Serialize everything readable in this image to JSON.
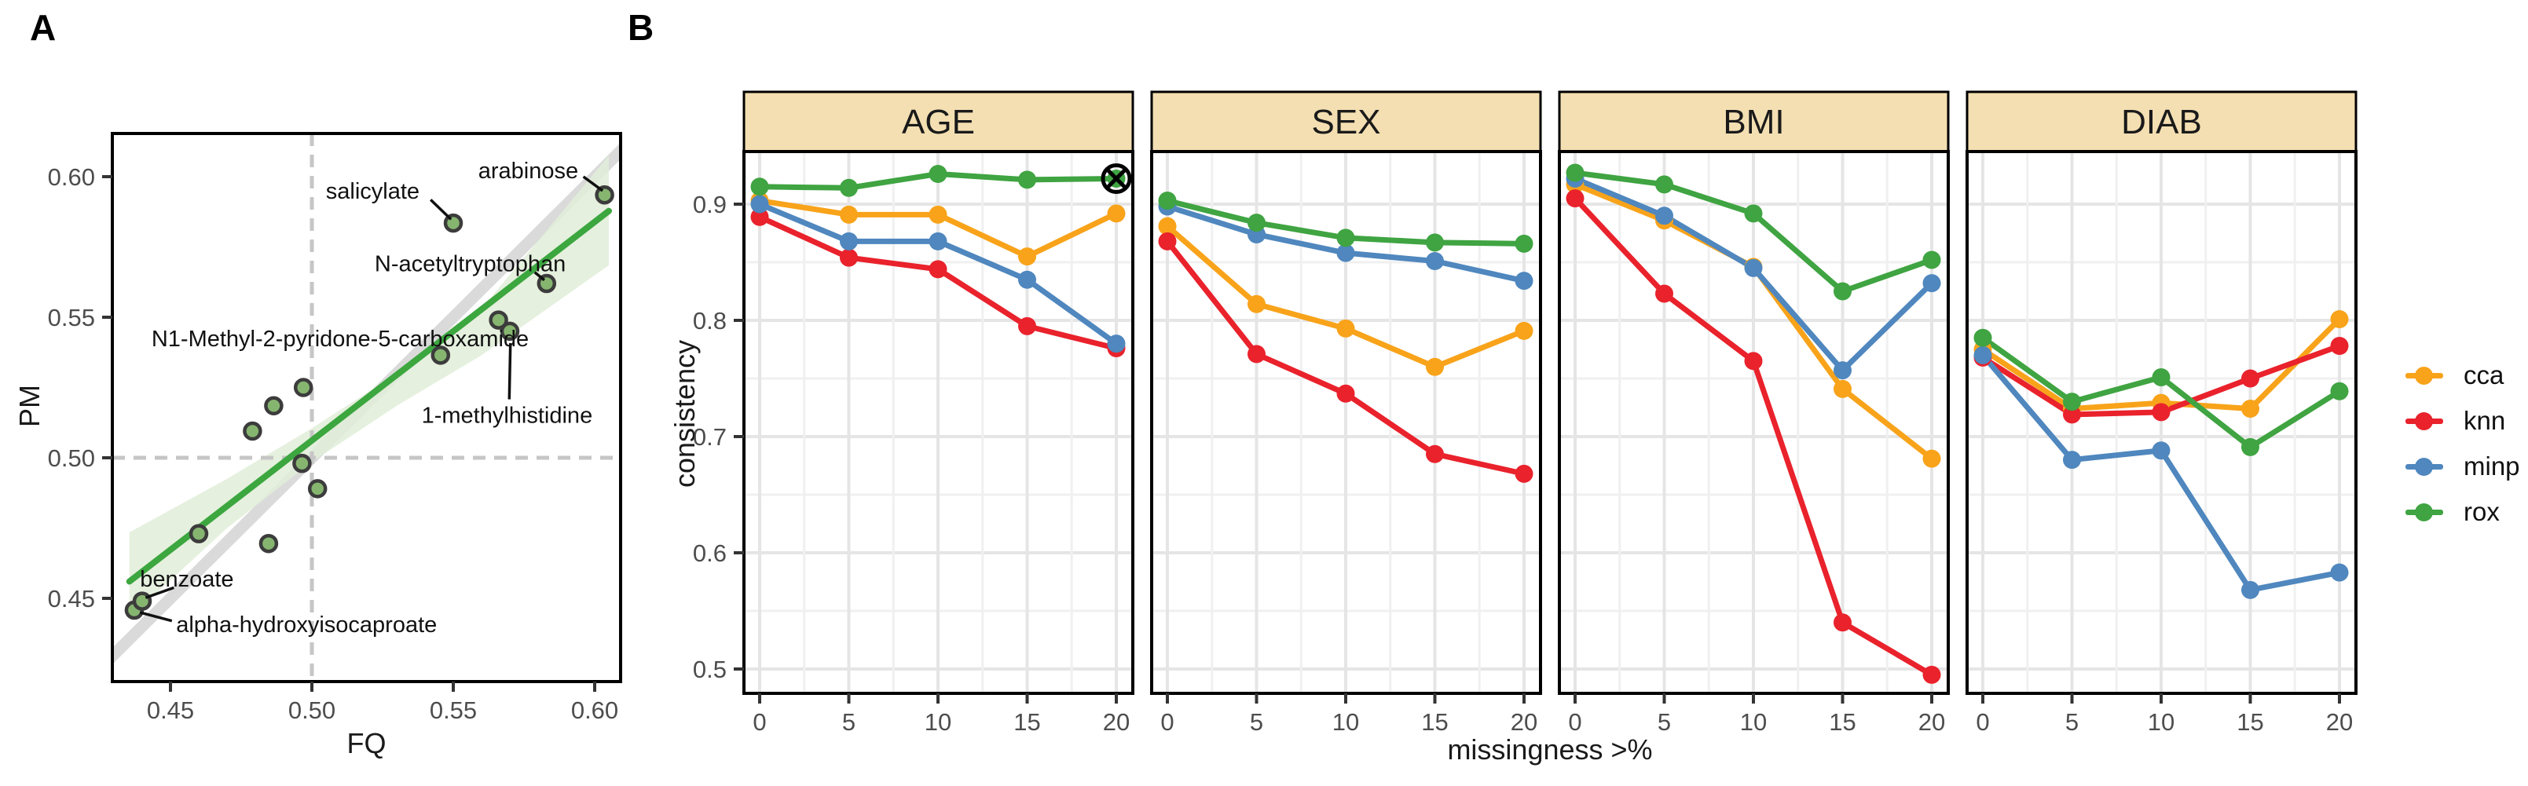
{
  "figure": {
    "panel_a_label": "A",
    "panel_b_label": "B"
  },
  "colors": {
    "cca": "#F8A31A",
    "knn": "#E9222C",
    "minp": "#4F87BE",
    "rox": "#3FA441",
    "fit_line": "#3CA63F",
    "ci_fill": "#E1EDD8",
    "identity_band": "#D2D2D2",
    "point_fill": "#86B570",
    "point_stroke": "#3C3C3C",
    "dashed_ref": "#C6C6C6",
    "strip_bg": "#F4DFB2",
    "strip_border": "#000000",
    "panel_border": "#000000",
    "grid_major": "#E5E5E5",
    "grid_minor": "#F0F0F0",
    "tick_text": "#4D4D4D",
    "tick_mark": "#333333",
    "label_text": "#111111",
    "annotation": "#000000"
  },
  "legend": {
    "items": [
      {
        "key": "cca",
        "label": "cca"
      },
      {
        "key": "knn",
        "label": "knn"
      },
      {
        "key": "minp",
        "label": "minp"
      },
      {
        "key": "rox",
        "label": "rox"
      }
    ]
  },
  "chart_data": [
    {
      "type": "scatter",
      "panel": "A",
      "xlabel": "FQ",
      "ylabel": "PM",
      "xlim": [
        0.4294,
        0.6097
      ],
      "ylim": [
        0.4204,
        0.6156
      ],
      "x_ticks": [
        {
          "v": 0.45,
          "label": "0.45"
        },
        {
          "v": 0.5,
          "label": "0.50"
        },
        {
          "v": 0.55,
          "label": "0.55"
        },
        {
          "v": 0.6,
          "label": "0.60"
        }
      ],
      "y_ticks": [
        {
          "v": 0.45,
          "label": "0.45"
        },
        {
          "v": 0.5,
          "label": "0.50"
        },
        {
          "v": 0.55,
          "label": "0.55"
        },
        {
          "v": 0.6,
          "label": "0.60"
        }
      ],
      "reference_lines": {
        "x": 0.5,
        "y": 0.5,
        "style": "dashed"
      },
      "identity_band": {
        "from": [
          0.418,
          0.418
        ],
        "to": [
          0.622,
          0.622
        ]
      },
      "fit_line": {
        "from": [
          0.4355,
          0.456
        ],
        "to": [
          0.605,
          0.5878
        ]
      },
      "ci_band": {
        "upper": [
          [
            0.4355,
            0.4735
          ],
          [
            0.47,
            0.4925
          ],
          [
            0.5,
            0.5105
          ],
          [
            0.53,
            0.53
          ],
          [
            0.56,
            0.553
          ],
          [
            0.605,
            0.6075
          ]
        ],
        "lower": [
          [
            0.605,
            0.5685
          ],
          [
            0.56,
            0.5365
          ],
          [
            0.53,
            0.5185
          ],
          [
            0.5,
            0.4985
          ],
          [
            0.47,
            0.475
          ],
          [
            0.4355,
            0.443
          ]
        ]
      },
      "points": [
        {
          "x": 0.4372,
          "y": 0.4458,
          "label": "alpha-hydroxyisocaproate"
        },
        {
          "x": 0.44,
          "y": 0.449,
          "label": "benzoate"
        },
        {
          "x": 0.46,
          "y": 0.473
        },
        {
          "x": 0.4847,
          "y": 0.4695
        },
        {
          "x": 0.479,
          "y": 0.5095
        },
        {
          "x": 0.4865,
          "y": 0.5185
        },
        {
          "x": 0.497,
          "y": 0.525
        },
        {
          "x": 0.4965,
          "y": 0.498
        },
        {
          "x": 0.502,
          "y": 0.489
        },
        {
          "x": 0.5455,
          "y": 0.5365,
          "label": "N1-Methyl-2-pyridone-5-carboxamide"
        },
        {
          "x": 0.55,
          "y": 0.5835,
          "label": "salicylate"
        },
        {
          "x": 0.566,
          "y": 0.549
        },
        {
          "x": 0.57,
          "y": 0.545,
          "label": "1-methylhistidine"
        },
        {
          "x": 0.583,
          "y": 0.562,
          "label": "N-acetyltryptophan"
        },
        {
          "x": 0.6035,
          "y": 0.5935,
          "label": "arabinose"
        }
      ],
      "point_labels": [
        {
          "text": "salicylate",
          "x": 0.5215,
          "y": 0.595,
          "anchor": "middle",
          "leader": [
            0.542,
            0.5918,
            0.5492,
            0.5848
          ]
        },
        {
          "text": "arabinose",
          "x": 0.5765,
          "y": 0.6022,
          "anchor": "middle",
          "leader": [
            0.596,
            0.6,
            0.6028,
            0.595
          ]
        },
        {
          "text": "N-acetyltryptophan",
          "x": 0.556,
          "y": 0.5692,
          "anchor": "middle",
          "leader": [
            0.5788,
            0.566,
            0.5822,
            0.5632
          ]
        },
        {
          "text": "N1-Methyl-2-pyridone-5-carboxamide",
          "x": 0.51,
          "y": 0.5425,
          "anchor": "middle"
        },
        {
          "text": "1-methylhistidine",
          "x": 0.569,
          "y": 0.5152,
          "anchor": "middle",
          "leader": [
            0.5698,
            0.5208,
            0.5702,
            0.5408
          ]
        },
        {
          "text": "benzoate",
          "x": 0.4558,
          "y": 0.457,
          "anchor": "middle",
          "leader": [
            0.4512,
            0.4538,
            0.4412,
            0.4502
          ]
        },
        {
          "text": "alpha-hydroxyisocaproate",
          "x": 0.452,
          "y": 0.4408,
          "anchor": "start",
          "leader": [
            0.4392,
            0.445,
            0.4505,
            0.442
          ]
        }
      ]
    },
    {
      "type": "line",
      "panel": "B",
      "xlabel": "missingness >%",
      "ylabel": "consistency",
      "x": [
        0,
        5,
        10,
        15,
        20
      ],
      "x_tick_labels": [
        "0",
        "5",
        "10",
        "15",
        "20"
      ],
      "ylim": [
        0.479,
        0.945
      ],
      "y_ticks": [
        {
          "v": 0.9,
          "label": "0.9"
        },
        {
          "v": 0.8,
          "label": "0.8"
        },
        {
          "v": 0.7,
          "label": "0.7"
        },
        {
          "v": 0.6,
          "label": "0.6"
        },
        {
          "v": 0.5,
          "label": "0.5"
        }
      ],
      "y_minor_ticks": [
        0.85,
        0.75,
        0.65,
        0.55
      ],
      "legend_position": "right",
      "grid": true,
      "facets": [
        {
          "name": "AGE",
          "series": [
            {
              "name": "cca",
              "values": [
                0.903,
                0.891,
                0.891,
                0.855,
                0.892
              ]
            },
            {
              "name": "knn",
              "values": [
                0.889,
                0.854,
                0.844,
                0.795,
                0.776
              ]
            },
            {
              "name": "minp",
              "values": [
                0.9,
                0.868,
                0.868,
                0.835,
                0.78
              ]
            },
            {
              "name": "rox",
              "values": [
                0.915,
                0.914,
                0.926,
                0.921,
                0.922
              ]
            }
          ]
        },
        {
          "name": "SEX",
          "series": [
            {
              "name": "cca",
              "values": [
                0.881,
                0.814,
                0.793,
                0.76,
                0.791
              ]
            },
            {
              "name": "knn",
              "values": [
                0.868,
                0.771,
                0.737,
                0.685,
                0.668
              ]
            },
            {
              "name": "minp",
              "values": [
                0.898,
                0.874,
                0.858,
                0.851,
                0.834
              ]
            },
            {
              "name": "rox",
              "values": [
                0.903,
                0.884,
                0.871,
                0.867,
                0.866
              ]
            }
          ]
        },
        {
          "name": "BMI",
          "series": [
            {
              "name": "cca",
              "values": [
                0.917,
                0.886,
                0.846,
                0.741,
                0.681
              ]
            },
            {
              "name": "knn",
              "values": [
                0.905,
                0.823,
                0.765,
                0.54,
                0.495
              ]
            },
            {
              "name": "minp",
              "values": [
                0.922,
                0.89,
                0.845,
                0.757,
                0.832
              ]
            },
            {
              "name": "rox",
              "values": [
                0.927,
                0.917,
                0.892,
                0.825,
                0.852
              ]
            }
          ]
        },
        {
          "name": "DIAB",
          "series": [
            {
              "name": "cca",
              "values": [
                0.775,
                0.724,
                0.729,
                0.724,
                0.801
              ]
            },
            {
              "name": "knn",
              "values": [
                0.768,
                0.719,
                0.721,
                0.75,
                0.778
              ]
            },
            {
              "name": "minp",
              "values": [
                0.77,
                0.68,
                0.688,
                0.568,
                0.583
              ]
            },
            {
              "name": "rox",
              "values": [
                0.785,
                0.73,
                0.751,
                0.691,
                0.739
              ]
            }
          ]
        }
      ],
      "annotation": {
        "facet": "AGE",
        "series": "rox",
        "x": 20,
        "symbol": "circled-x"
      }
    }
  ]
}
